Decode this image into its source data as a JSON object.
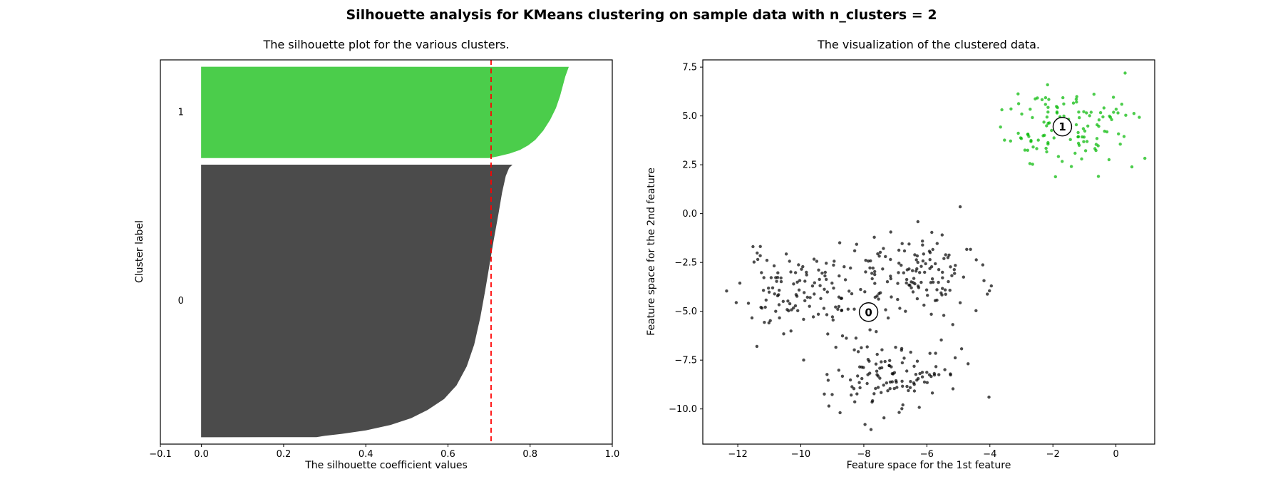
{
  "suptitle": "Silhouette analysis for KMeans clustering on sample data with n_clusters = 2",
  "n_clusters": 2,
  "chart_data": [
    {
      "type": "area",
      "subtype": "silhouette-plot",
      "title": "The silhouette plot for the various clusters.",
      "xlabel": "The silhouette coefficient values",
      "ylabel": "Cluster label",
      "xlim": [
        -0.1,
        1.0
      ],
      "ylim": [
        0,
        530
      ],
      "xticks": [
        -0.1,
        0.0,
        0.2,
        0.4,
        0.6,
        0.8,
        1.0
      ],
      "xtick_labels": [
        "−0.1",
        "0.0",
        "0.2",
        "0.4",
        "0.6",
        "0.8",
        "1.0"
      ],
      "grid": false,
      "alpha": 0.7,
      "average_silhouette": 0.705,
      "avg_line": {
        "color": "#ff0000",
        "style": "dashed"
      },
      "clusters": [
        {
          "label": "0",
          "n_samples": 375,
          "y_start": 10,
          "color": "#000000",
          "rendered_color": "#4a4a4a",
          "label_y": 197.5,
          "silhouette_range": [
            0.28,
            0.755
          ],
          "profile": [
            [
              0,
              0.28
            ],
            [
              0.005,
              0.3
            ],
            [
              0.012,
              0.34
            ],
            [
              0.025,
              0.4
            ],
            [
              0.045,
              0.46
            ],
            [
              0.07,
              0.51
            ],
            [
              0.1,
              0.55
            ],
            [
              0.14,
              0.59
            ],
            [
              0.19,
              0.62
            ],
            [
              0.26,
              0.645
            ],
            [
              0.34,
              0.663
            ],
            [
              0.44,
              0.678
            ],
            [
              0.54,
              0.69
            ],
            [
              0.63,
              0.7
            ],
            [
              0.72,
              0.71
            ],
            [
              0.82,
              0.722
            ],
            [
              0.9,
              0.731
            ],
            [
              0.96,
              0.74
            ],
            [
              0.99,
              0.748
            ],
            [
              1,
              0.755
            ]
          ]
        },
        {
          "label": "1",
          "n_samples": 125,
          "y_start": 395,
          "color": "#00b800",
          "rendered_color": "#4acb4e",
          "label_y": 457.5,
          "silhouette_range": [
            0.7,
            0.893
          ],
          "profile": [
            [
              0,
              0.7
            ],
            [
              0.02,
              0.722
            ],
            [
              0.05,
              0.75
            ],
            [
              0.09,
              0.775
            ],
            [
              0.14,
              0.795
            ],
            [
              0.2,
              0.812
            ],
            [
              0.3,
              0.831
            ],
            [
              0.42,
              0.848
            ],
            [
              0.55,
              0.862
            ],
            [
              0.68,
              0.872
            ],
            [
              0.8,
              0.879
            ],
            [
              0.9,
              0.885
            ],
            [
              1,
              0.893
            ]
          ]
        }
      ]
    },
    {
      "type": "scatter",
      "subtype": "clustered-data",
      "title": "The visualization of the clustered data.",
      "xlabel": "Feature space for the 1st feature",
      "ylabel": "Feature space for the 2nd feature",
      "xlim": [
        -13.11,
        1.23
      ],
      "ylim": [
        -11.8,
        7.87
      ],
      "xticks": [
        -12,
        -10,
        -8,
        -6,
        -4,
        -2,
        0
      ],
      "xtick_labels": [
        "−12",
        "−10",
        "−8",
        "−6",
        "−4",
        "−2",
        "0"
      ],
      "yticks": [
        -10,
        -7.5,
        -5,
        -2.5,
        0,
        2.5,
        5,
        7.5
      ],
      "ytick_labels": [
        "−10.0",
        "−7.5",
        "−5.0",
        "−2.5",
        "0.0",
        "2.5",
        "5.0",
        "7.5"
      ],
      "grid": false,
      "alpha": 0.7,
      "marker_radius": 2.2,
      "clusters": [
        {
          "label": "0",
          "color": "#000000",
          "rendered_color": "#4a4a4a",
          "centroid": [
            -7.85,
            -5.04
          ],
          "blobs": [
            {
              "center": [
                -9.99,
                -3.95
              ],
              "std": 1.0,
              "n": 125,
              "seed": 11
            },
            {
              "center": [
                -6.27,
                -3.09
              ],
              "std": 1.05,
              "n": 125,
              "seed": 23
            },
            {
              "center": [
                -7.07,
                -8.15
              ],
              "std": 1.05,
              "n": 125,
              "seed": 37
            }
          ]
        },
        {
          "label": "1",
          "color": "#00b800",
          "rendered_color": "#4acb4e",
          "centroid": [
            -1.7,
            4.45
          ],
          "blobs": [
            {
              "center": [
                -1.66,
                4.41
              ],
              "std": 1.05,
              "n": 125,
              "seed": 51
            }
          ]
        }
      ],
      "centroid_marker": {
        "fill": "#ffffff",
        "edge": "#000000",
        "radius": 13
      }
    }
  ]
}
